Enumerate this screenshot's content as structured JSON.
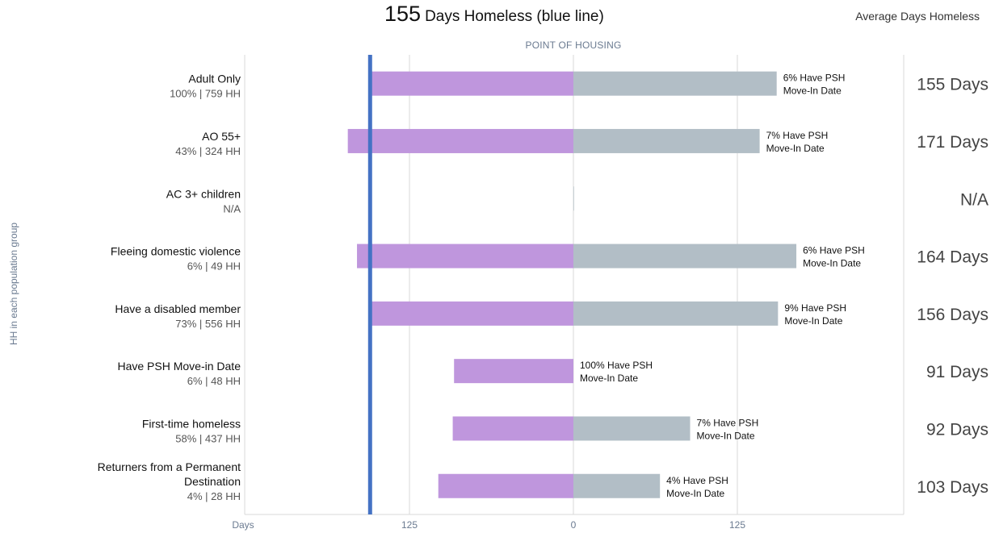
{
  "header": {
    "title_number": "155",
    "title_text": "Days Homeless (blue line)",
    "avg_heading": "Average Days Homeless",
    "subtitle": "POINT OF HOUSING",
    "y_axis_label": "HH in each population group"
  },
  "chart_data": {
    "type": "bar",
    "orientation": "horizontal",
    "diverging": true,
    "title": "155 Days Homeless (blue line)",
    "subtitle": "POINT OF HOUSING",
    "ylabel": "HH in each population group",
    "x_axis": {
      "ticks": [
        {
          "value": -125,
          "label": "125"
        },
        {
          "value": 0,
          "label": "0"
        },
        {
          "value": 125,
          "label": "125"
        }
      ],
      "left_label": "Days",
      "range": [
        -250,
        250
      ]
    },
    "reference_line": {
      "value": -155,
      "label": "155",
      "color": "#4472c4"
    },
    "categories": [
      {
        "name": "Adult Only",
        "detail": "100% | 759 HH",
        "before_days": 155,
        "after_days": 155,
        "psh_label_1": "6% Have PSH",
        "psh_label_2": "Move-In Date",
        "avg": "155 Days"
      },
      {
        "name": "AO 55+",
        "detail": "43% | 324 HH",
        "before_days": 172,
        "after_days": 142,
        "psh_label_1": "7% Have PSH",
        "psh_label_2": "Move-In Date",
        "avg": "171 Days"
      },
      {
        "name": "AC 3+ children",
        "detail": "N/A",
        "before_days": 0,
        "after_days": 0,
        "psh_label_1": "",
        "psh_label_2": "",
        "avg": "N/A"
      },
      {
        "name": "Fleeing domestic violence",
        "detail": "6% | 49 HH",
        "before_days": 165,
        "after_days": 170,
        "psh_label_1": "6% Have PSH",
        "psh_label_2": "Move-In Date",
        "avg": "164 Days"
      },
      {
        "name": "Have a disabled member",
        "detail": "73% | 556 HH",
        "before_days": 155,
        "after_days": 156,
        "psh_label_1": "9% Have PSH",
        "psh_label_2": "Move-In Date",
        "avg": "156 Days"
      },
      {
        "name": "Have PSH Move-in Date",
        "detail": "6% | 48 HH",
        "before_days": 91,
        "after_days": 0,
        "psh_label_1": "100% Have PSH",
        "psh_label_2": "Move-In Date",
        "avg": "91 Days"
      },
      {
        "name": "First-time homeless",
        "detail": "58% | 437 HH",
        "before_days": 92,
        "after_days": 89,
        "psh_label_1": "7% Have PSH",
        "psh_label_2": "Move-In Date",
        "avg": "92 Days"
      },
      {
        "name": "Returners from a Permanent Destination",
        "name_lines": [
          "Returners from a Permanent",
          "Destination"
        ],
        "detail": "4% | 28 HH",
        "before_days": 103,
        "after_days": 66,
        "psh_label_1": "4% Have PSH",
        "psh_label_2": "Move-In Date",
        "avg": "103 Days"
      }
    ],
    "colors": {
      "before": "#bf96dd",
      "after": "#b2bec6",
      "reference": "#4472c4",
      "grid": "#d9d9d9"
    }
  }
}
